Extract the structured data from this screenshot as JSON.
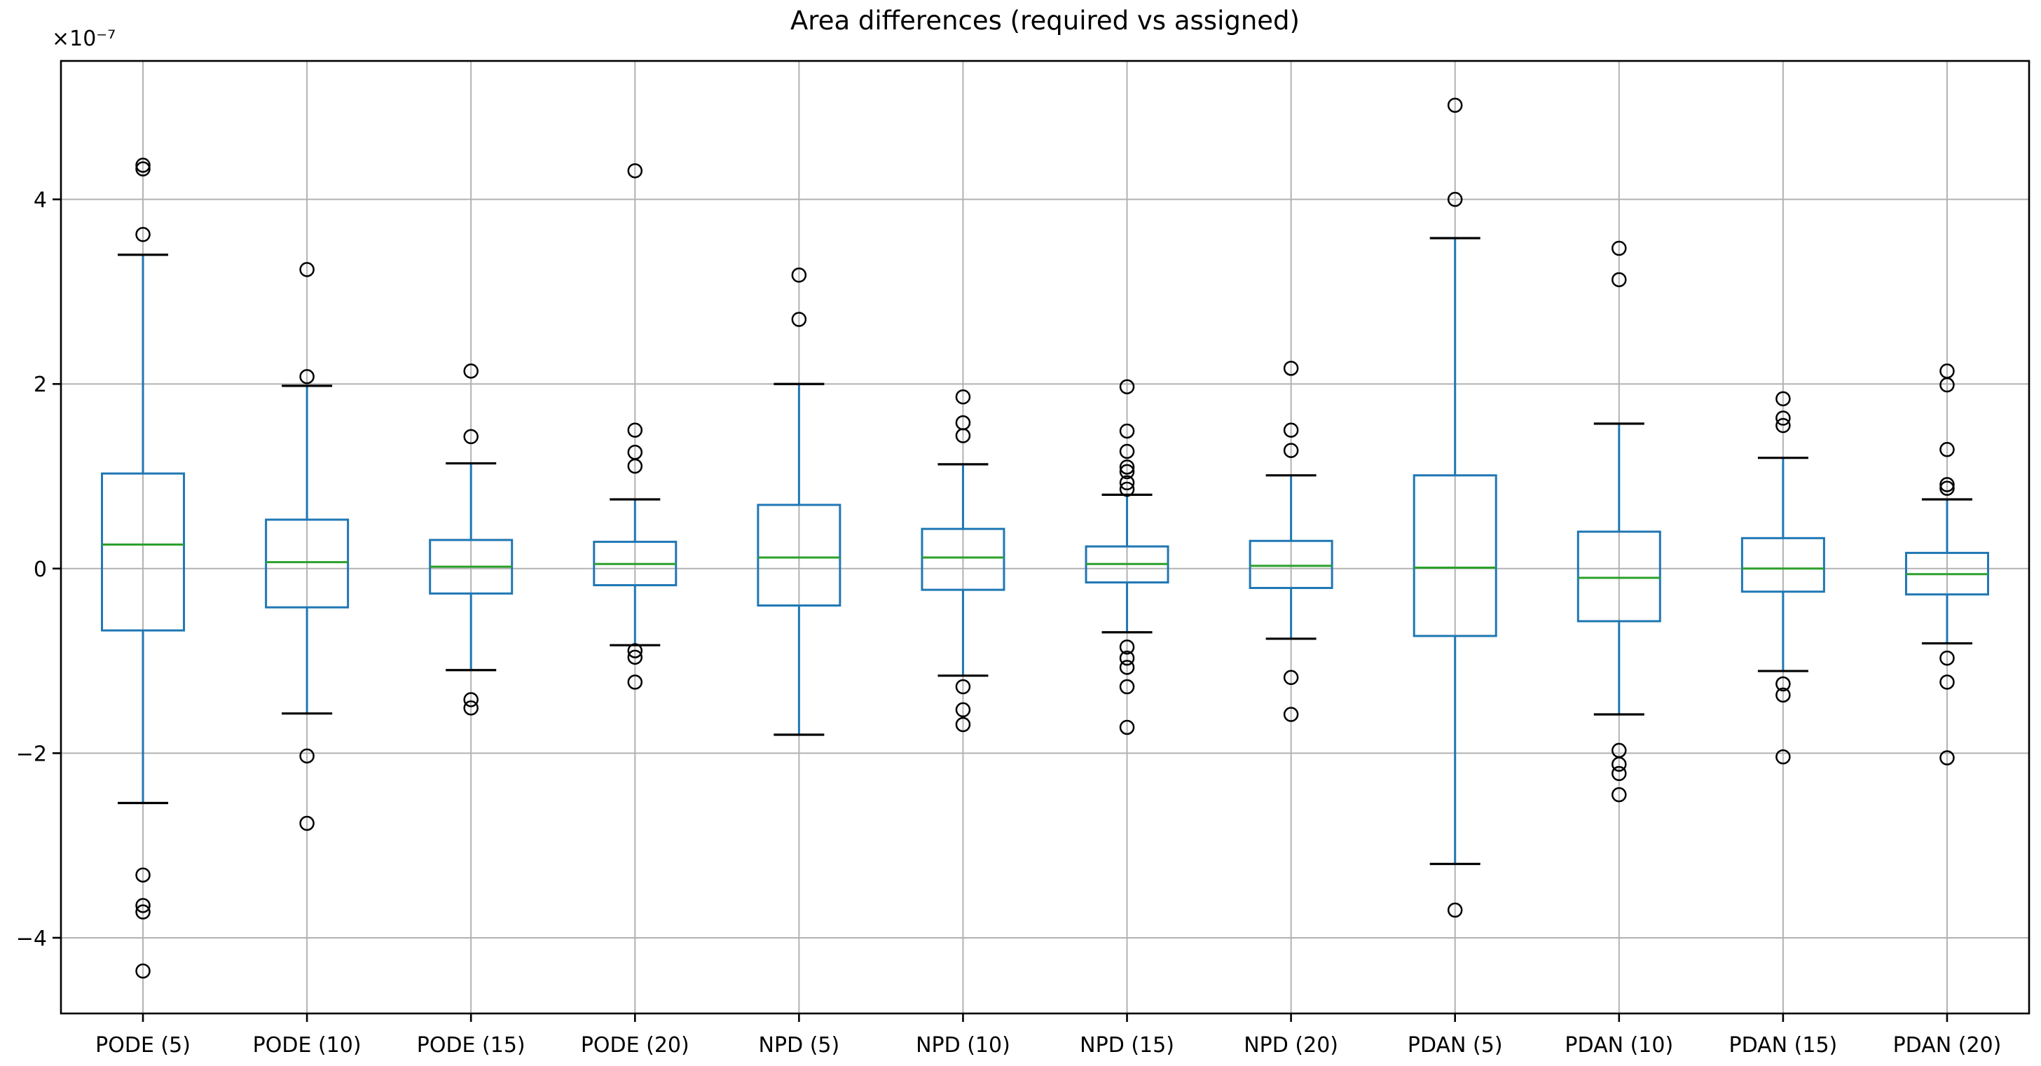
{
  "chart_data": {
    "type": "box",
    "title": "Area differences (required vs assigned)",
    "y_offset_label": "×10⁻⁷",
    "xlabel": "",
    "ylabel": "",
    "y_unit_exponent": -7,
    "y_ticks": [
      -4,
      -2,
      0,
      2,
      4
    ],
    "ylim": [
      -4.82,
      5.5
    ],
    "grid": true,
    "legend": "none",
    "categories": [
      "PODE (5)",
      "PODE (10)",
      "PODE (15)",
      "PODE (20)",
      "NPD (5)",
      "NPD (10)",
      "NPD (15)",
      "NPD (20)",
      "PDAN (5)",
      "PDAN (10)",
      "PDAN (15)",
      "PDAN (20)"
    ],
    "boxes": [
      {
        "label": "PODE (5)",
        "whislo": -2.54,
        "q1": -0.67,
        "med": 0.26,
        "q3": 1.03,
        "whishi": 3.4,
        "fliers": [
          4.37,
          4.33,
          3.62,
          -3.32,
          -3.65,
          -3.72,
          -4.36
        ]
      },
      {
        "label": "PODE (10)",
        "whislo": -1.57,
        "q1": -0.42,
        "med": 0.07,
        "q3": 0.53,
        "whishi": 1.98,
        "fliers": [
          3.24,
          2.08,
          -2.03,
          -2.76
        ]
      },
      {
        "label": "PODE (15)",
        "whislo": -1.1,
        "q1": -0.27,
        "med": 0.02,
        "q3": 0.31,
        "whishi": 1.14,
        "fliers": [
          2.14,
          1.43,
          -1.42,
          -1.51
        ]
      },
      {
        "label": "PODE (20)",
        "whislo": -0.83,
        "q1": -0.18,
        "med": 0.05,
        "q3": 0.29,
        "whishi": 0.75,
        "fliers": [
          4.31,
          1.5,
          1.26,
          1.11,
          -0.89,
          -0.96,
          -1.23
        ]
      },
      {
        "label": "NPD (5)",
        "whislo": -1.8,
        "q1": -0.4,
        "med": 0.12,
        "q3": 0.69,
        "whishi": 2.0,
        "fliers": [
          3.18,
          2.7
        ]
      },
      {
        "label": "NPD (10)",
        "whislo": -1.16,
        "q1": -0.23,
        "med": 0.12,
        "q3": 0.43,
        "whishi": 1.13,
        "fliers": [
          1.86,
          1.58,
          1.44,
          -1.28,
          -1.53,
          -1.69
        ]
      },
      {
        "label": "NPD (15)",
        "whislo": -0.69,
        "q1": -0.15,
        "med": 0.05,
        "q3": 0.24,
        "whishi": 0.8,
        "fliers": [
          1.97,
          1.49,
          1.27,
          1.1,
          1.05,
          0.93,
          0.86,
          -0.85,
          -0.97,
          -1.07,
          -1.28,
          -1.72
        ]
      },
      {
        "label": "NPD (20)",
        "whislo": -0.76,
        "q1": -0.21,
        "med": 0.03,
        "q3": 0.3,
        "whishi": 1.01,
        "fliers": [
          2.17,
          1.5,
          1.28,
          -1.18,
          -1.58
        ]
      },
      {
        "label": "PDAN (5)",
        "whislo": -3.2,
        "q1": -0.73,
        "med": 0.01,
        "q3": 1.01,
        "whishi": 3.58,
        "fliers": [
          5.02,
          4.0,
          -3.7
        ]
      },
      {
        "label": "PDAN (10)",
        "whislo": -1.58,
        "q1": -0.57,
        "med": -0.1,
        "q3": 0.4,
        "whishi": 1.57,
        "fliers": [
          3.47,
          3.13,
          -1.97,
          -2.12,
          -2.22,
          -2.45
        ]
      },
      {
        "label": "PDAN (15)",
        "whislo": -1.11,
        "q1": -0.25,
        "med": 0.0,
        "q3": 0.33,
        "whishi": 1.2,
        "fliers": [
          1.84,
          1.63,
          1.55,
          -1.25,
          -1.37,
          -2.04
        ]
      },
      {
        "label": "PDAN (20)",
        "whislo": -0.81,
        "q1": -0.28,
        "med": -0.06,
        "q3": 0.17,
        "whishi": 0.75,
        "fliers": [
          2.14,
          1.99,
          1.29,
          0.91,
          0.87,
          -0.97,
          -1.23,
          -2.05
        ]
      }
    ],
    "colors": {
      "box": "#1f77b4",
      "whisker": "#1f77b4",
      "cap": "#000000",
      "median": "#2ca02c",
      "flier": "#000000",
      "grid": "#b2b2b2",
      "spine": "#000000",
      "text": "#000000",
      "background": "#ffffff"
    }
  }
}
